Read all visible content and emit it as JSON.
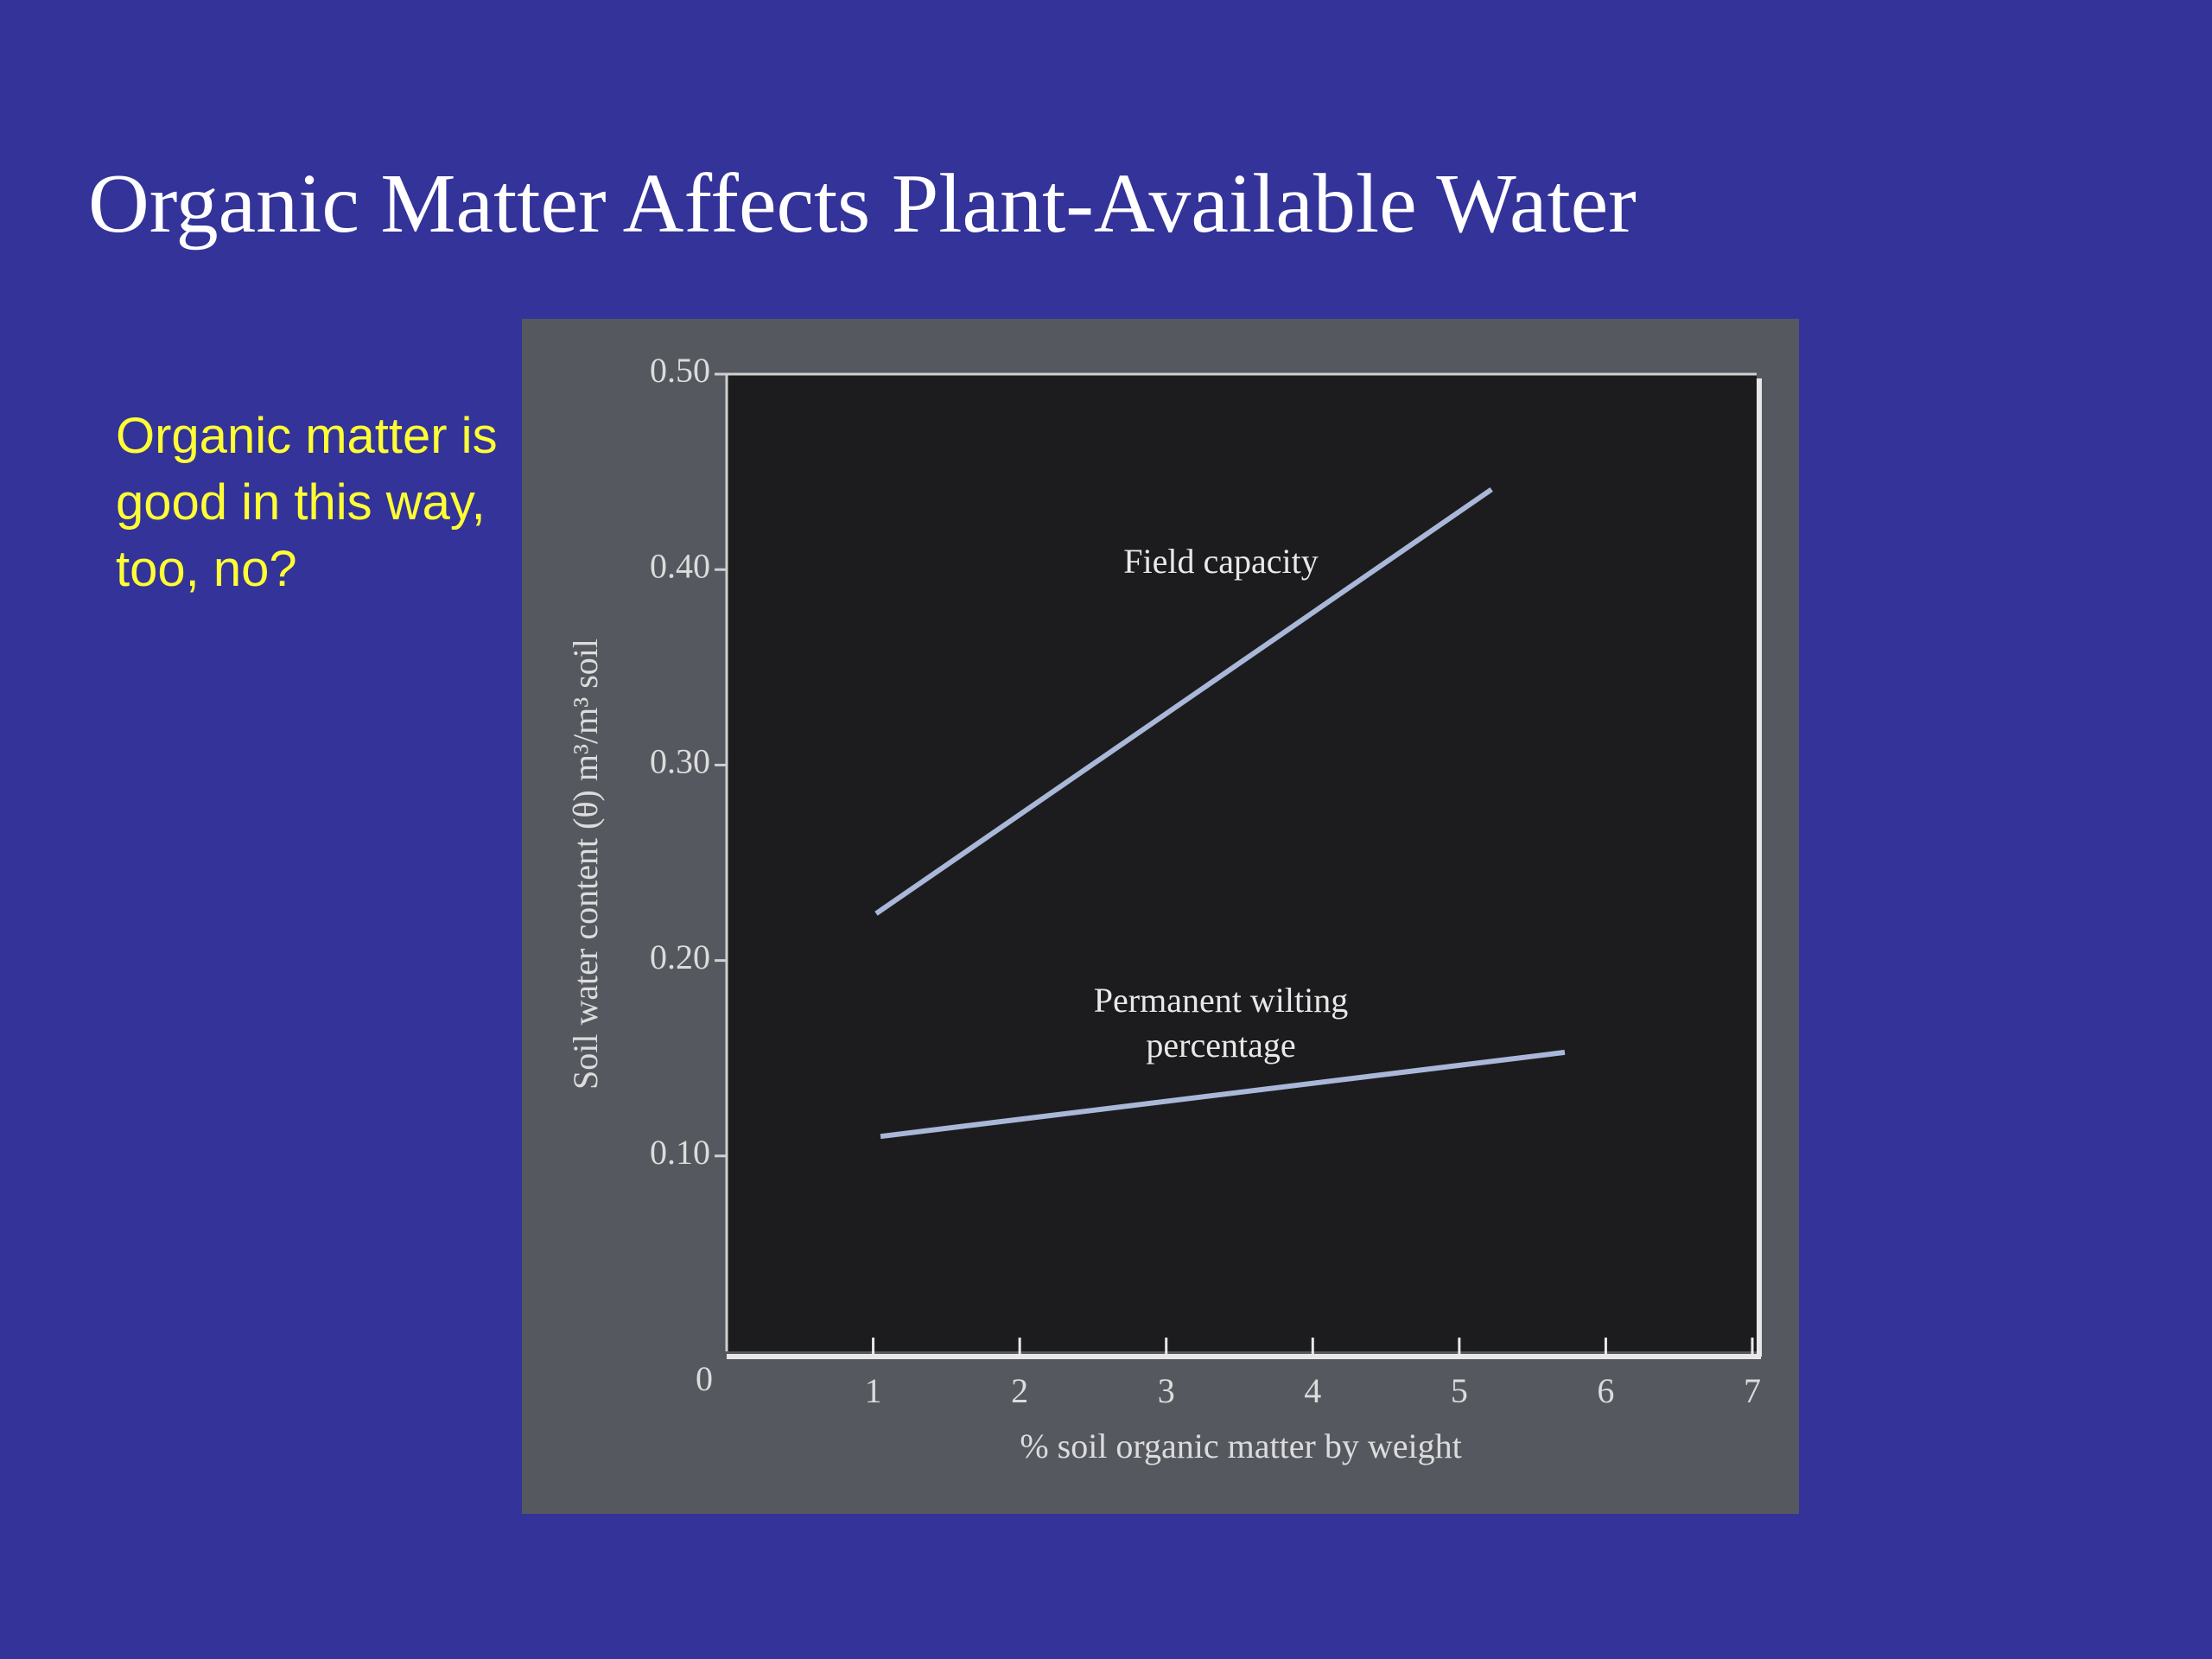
{
  "slide": {
    "title": "Organic Matter Affects Plant-Available Water",
    "note": "Organic matter is good in this way, too, no?"
  },
  "chart_data": {
    "type": "line",
    "xlabel": "% soil organic matter by weight",
    "ylabel": "Soil water content (θ) m³/m³ soil",
    "xlim": [
      0,
      7
    ],
    "xticks": [
      1,
      2,
      3,
      4,
      5,
      6,
      7
    ],
    "ylim": [
      0,
      0.5
    ],
    "yticks": [
      0,
      {
        "value": 0.1,
        "label": "0.10"
      },
      {
        "value": 0.2,
        "label": "0.20"
      },
      {
        "value": 0.3,
        "label": "0.30"
      },
      {
        "value": 0.4,
        "label": "0.40"
      },
      {
        "value": 0.5,
        "label": "0.50"
      }
    ],
    "series": [
      {
        "name": "Field capacity",
        "color": "#a9b8d8",
        "x": [
          1.02,
          5.22
        ],
        "values": [
          0.224,
          0.441
        ]
      },
      {
        "name": "Permanent wilting percentage",
        "color": "#a9b8d8",
        "x": [
          1.05,
          5.72
        ],
        "values": [
          0.11,
          0.153
        ]
      }
    ]
  }
}
